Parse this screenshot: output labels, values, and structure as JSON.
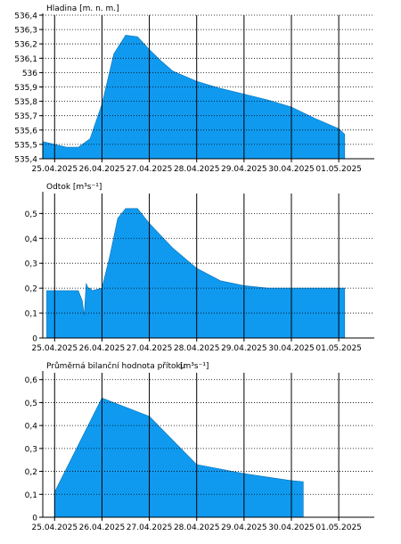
{
  "chart_data": [
    {
      "type": "area",
      "title": "Hladina [m. n. m.]",
      "fill_color": "#0f9af0",
      "grid": "dotted",
      "x_ticks": [
        "25.04.2025",
        "26.04.2025",
        "27.04.2025",
        "28.04.2025",
        "29.04.2025",
        "30.04.2025",
        "01.05.2025"
      ],
      "y_ticks": [
        "536,4",
        "536,3",
        "536,2",
        "536,1",
        "536",
        "535,9",
        "535,8",
        "535,7",
        "535,6",
        "535,5",
        "535,4"
      ],
      "ylim": [
        535.4,
        536.4
      ],
      "xlim": [
        "24.04.2025 18:00",
        "01.05.2025 18:00"
      ],
      "series": [
        {
          "x": [
            "24.04.2025 18:00",
            "25.04.2025 00:00",
            "25.04.2025 06:00",
            "25.04.2025 12:00",
            "25.04.2025 18:00",
            "26.04.2025 00:00",
            "26.04.2025 06:00",
            "26.04.2025 12:00",
            "26.04.2025 18:00",
            "27.04.2025 00:00",
            "27.04.2025 06:00",
            "27.04.2025 12:00",
            "28.04.2025 00:00",
            "28.04.2025 12:00",
            "29.04.2025 00:00",
            "29.04.2025 12:00",
            "30.04.2025 00:00",
            "30.04.2025 12:00",
            "01.05.2025 00:00",
            "01.05.2025 03:00"
          ],
          "y": [
            535.52,
            535.5,
            535.48,
            535.48,
            535.54,
            535.78,
            536.13,
            536.26,
            536.25,
            536.16,
            536.08,
            536.01,
            535.94,
            535.89,
            535.85,
            535.81,
            535.76,
            535.68,
            535.61,
            535.57
          ]
        }
      ]
    },
    {
      "type": "area",
      "title": "Odtok [m³s⁻¹]",
      "fill_color": "#0f9af0",
      "grid": "dotted",
      "x_ticks": [
        "25.04.2025",
        "26.04.2025",
        "27.04.2025",
        "28.04.2025",
        "29.04.2025",
        "30.04.2025",
        "01.05.2025"
      ],
      "y_ticks": [
        "0,5",
        "0,4",
        "0,3",
        "0,2",
        "0,1",
        "0"
      ],
      "ylim": [
        0,
        0.58
      ],
      "xlim": [
        "24.04.2025 18:00",
        "01.05.2025 18:00"
      ],
      "series": [
        {
          "x": [
            "24.04.2025 20:00",
            "25.04.2025 12:00",
            "25.04.2025 14:00",
            "25.04.2025 15:00",
            "25.04.2025 16:00",
            "25.04.2025 17:00",
            "25.04.2025 18:00",
            "25.04.2025 19:00",
            "26.04.2025 00:00",
            "26.04.2025 04:00",
            "26.04.2025 08:00",
            "26.04.2025 12:00",
            "26.04.2025 18:00",
            "27.04.2025 00:00",
            "27.04.2025 12:00",
            "28.04.2025 00:00",
            "28.04.2025 12:00",
            "29.04.2025 00:00",
            "29.04.2025 12:00",
            "30.04.2025 00:00",
            "30.04.2025 12:00",
            "01.05.2025 00:00",
            "01.05.2025 03:00"
          ],
          "y": [
            0.19,
            0.19,
            0.15,
            0.09,
            0.22,
            0.2,
            0.2,
            0.19,
            0.2,
            0.33,
            0.48,
            0.52,
            0.52,
            0.46,
            0.36,
            0.28,
            0.23,
            0.21,
            0.2,
            0.2,
            0.2,
            0.2,
            0.2
          ]
        }
      ]
    },
    {
      "type": "area",
      "title": "Průměrná bilanční hodnota přítoku",
      "title_unit": "[m³s⁻¹]",
      "fill_color": "#0f9af0",
      "grid": "dotted",
      "x_ticks": [
        "25.04.2025",
        "26.04.2025",
        "27.04.2025",
        "28.04.2025",
        "29.04.2025",
        "30.04.2025",
        "01.05.2025"
      ],
      "y_ticks": [
        "0,6",
        "0,5",
        "0,4",
        "0,3",
        "0,2",
        "0,1",
        "0"
      ],
      "ylim": [
        0,
        0.63
      ],
      "xlim": [
        "24.04.2025 18:00",
        "01.05.2025 18:00"
      ],
      "series": [
        {
          "x": [
            "25.04.2025 00:00",
            "26.04.2025 00:00",
            "27.04.2025 00:00",
            "28.04.2025 00:00",
            "29.04.2025 00:00",
            "30.04.2025 00:00",
            "30.04.2025 06:00"
          ],
          "y": [
            0.11,
            0.52,
            0.44,
            0.23,
            0.19,
            0.16,
            0.155
          ]
        }
      ]
    }
  ]
}
